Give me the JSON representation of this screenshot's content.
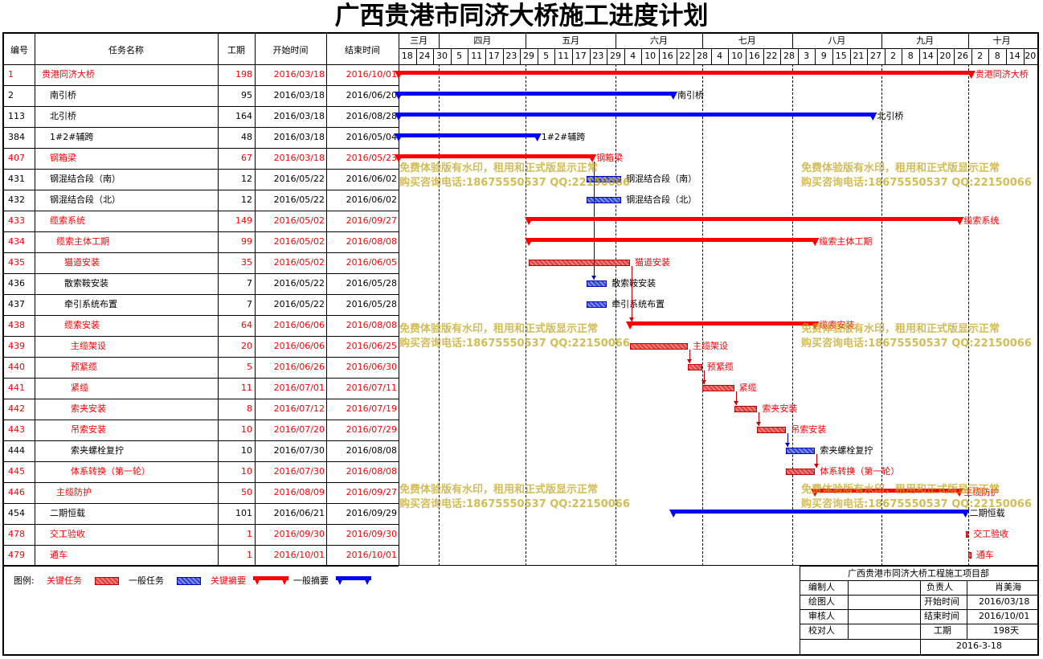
{
  "title": "广西贵港市同济大桥施工进度计划",
  "headers": {
    "id": "编号",
    "name": "任务名称",
    "duration": "工期",
    "start": "开始时间",
    "end": "结束时间"
  },
  "months": [
    "三月",
    "四月",
    "五月",
    "六月",
    "七月",
    "八月",
    "九月",
    "十月"
  ],
  "days": [
    "18",
    "24",
    "30",
    "5",
    "11",
    "17",
    "23",
    "29",
    "5",
    "11",
    "17",
    "23",
    "29",
    "4",
    "10",
    "16",
    "22",
    "28",
    "4",
    "10",
    "16",
    "22",
    "28",
    "3",
    "9",
    "15",
    "21",
    "27",
    "2",
    "8",
    "14",
    "20",
    "26",
    "2",
    "8",
    "14",
    "20"
  ],
  "tasks": [
    {
      "id": "1",
      "name": "贵港同济大桥",
      "duration": "198",
      "start": "2016/03/18",
      "end": "2016/10/01",
      "critical": true,
      "level": 0,
      "type": "summary",
      "s": 0,
      "e": 198,
      "label": "贵港同济大桥"
    },
    {
      "id": "2",
      "name": "南引桥",
      "duration": "95",
      "start": "2016/03/18",
      "end": "2016/06/20",
      "critical": false,
      "level": 1,
      "type": "summary",
      "s": 0,
      "e": 95,
      "label": "南引桥"
    },
    {
      "id": "113",
      "name": "北引桥",
      "duration": "164",
      "start": "2016/03/18",
      "end": "2016/08/28",
      "critical": false,
      "level": 1,
      "type": "summary",
      "s": 0,
      "e": 164,
      "label": "北引桥"
    },
    {
      "id": "384",
      "name": "1#2#辅跨",
      "duration": "48",
      "start": "2016/03/18",
      "end": "2016/05/04",
      "critical": false,
      "level": 1,
      "type": "summary",
      "s": 0,
      "e": 48,
      "label": "1#2#辅跨"
    },
    {
      "id": "407",
      "name": "钢箱梁",
      "duration": "67",
      "start": "2016/03/18",
      "end": "2016/05/23",
      "critical": true,
      "level": 1,
      "type": "summary",
      "s": 0,
      "e": 67,
      "label": "钢箱梁"
    },
    {
      "id": "431",
      "name": "钢混结合段（南）",
      "duration": "12",
      "start": "2016/05/22",
      "end": "2016/06/02",
      "critical": false,
      "level": 1,
      "type": "task",
      "s": 65,
      "e": 77,
      "label": "钢混结合段（南）"
    },
    {
      "id": "432",
      "name": "钢混结合段（北）",
      "duration": "12",
      "start": "2016/05/22",
      "end": "2016/06/02",
      "critical": false,
      "level": 1,
      "type": "task",
      "s": 65,
      "e": 77,
      "label": "钢混结合段（北）"
    },
    {
      "id": "433",
      "name": "缆索系统",
      "duration": "149",
      "start": "2016/05/02",
      "end": "2016/09/27",
      "critical": true,
      "level": 1,
      "type": "summary",
      "s": 45,
      "e": 194,
      "label": "缆索系统"
    },
    {
      "id": "434",
      "name": "缆索主体工期",
      "duration": "99",
      "start": "2016/05/02",
      "end": "2016/08/08",
      "critical": true,
      "level": 2,
      "type": "summary",
      "s": 45,
      "e": 144,
      "label": "缆索主体工期"
    },
    {
      "id": "435",
      "name": "猫道安装",
      "duration": "35",
      "start": "2016/05/02",
      "end": "2016/06/05",
      "critical": true,
      "level": 3,
      "type": "task",
      "s": 45,
      "e": 80,
      "label": "猫道安装"
    },
    {
      "id": "436",
      "name": "散索鞍安装",
      "duration": "7",
      "start": "2016/05/22",
      "end": "2016/05/28",
      "critical": false,
      "level": 3,
      "type": "task",
      "s": 65,
      "e": 72,
      "label": "散索鞍安装"
    },
    {
      "id": "437",
      "name": "牵引系统布置",
      "duration": "7",
      "start": "2016/05/22",
      "end": "2016/05/28",
      "critical": false,
      "level": 3,
      "type": "task",
      "s": 65,
      "e": 72,
      "label": "牵引系统布置"
    },
    {
      "id": "438",
      "name": "缆索安装",
      "duration": "64",
      "start": "2016/06/06",
      "end": "2016/08/08",
      "critical": true,
      "level": 3,
      "type": "summary",
      "s": 80,
      "e": 144,
      "label": "缆索安装"
    },
    {
      "id": "439",
      "name": "主缆架设",
      "duration": "20",
      "start": "2016/06/06",
      "end": "2016/06/25",
      "critical": true,
      "level": 4,
      "type": "task",
      "s": 80,
      "e": 100,
      "label": "主缆架设"
    },
    {
      "id": "440",
      "name": "预紧缆",
      "duration": "5",
      "start": "2016/06/26",
      "end": "2016/06/30",
      "critical": true,
      "level": 4,
      "type": "task",
      "s": 100,
      "e": 105,
      "label": "预紧缆"
    },
    {
      "id": "441",
      "name": "紧缆",
      "duration": "11",
      "start": "2016/07/01",
      "end": "2016/07/11",
      "critical": true,
      "level": 4,
      "type": "task",
      "s": 105,
      "e": 116,
      "label": "紧缆"
    },
    {
      "id": "442",
      "name": "索夹安装",
      "duration": "8",
      "start": "2016/07/12",
      "end": "2016/07/19",
      "critical": true,
      "level": 4,
      "type": "task",
      "s": 116,
      "e": 124,
      "label": "索夹安装"
    },
    {
      "id": "443",
      "name": "吊索安装",
      "duration": "10",
      "start": "2016/07/20",
      "end": "2016/07/29",
      "critical": true,
      "level": 4,
      "type": "task",
      "s": 124,
      "e": 134,
      "label": "吊索安装"
    },
    {
      "id": "444",
      "name": "索夹螺栓复拧",
      "duration": "10",
      "start": "2016/07/30",
      "end": "2016/08/08",
      "critical": false,
      "level": 4,
      "type": "task",
      "s": 134,
      "e": 144,
      "label": "索夹螺栓复拧"
    },
    {
      "id": "445",
      "name": "体系转换（第一轮）",
      "duration": "10",
      "start": "2016/07/30",
      "end": "2016/08/08",
      "critical": true,
      "level": 4,
      "type": "task",
      "s": 134,
      "e": 144,
      "label": "体系转换（第一轮）"
    },
    {
      "id": "446",
      "name": "主缆防护",
      "duration": "50",
      "start": "2016/08/09",
      "end": "2016/09/27",
      "critical": true,
      "level": 2,
      "type": "summary",
      "s": 144,
      "e": 194,
      "label": "主缆防护"
    },
    {
      "id": "454",
      "name": "二期恒载",
      "duration": "101",
      "start": "2016/06/21",
      "end": "2016/09/29",
      "critical": false,
      "level": 1,
      "type": "summary",
      "s": 95,
      "e": 196,
      "label": "二期恒载"
    },
    {
      "id": "478",
      "name": "交工验收",
      "duration": "1",
      "start": "2016/09/30",
      "end": "2016/09/30",
      "critical": true,
      "level": 1,
      "type": "task",
      "s": 196,
      "e": 197,
      "label": "交工验收"
    },
    {
      "id": "479",
      "name": "通车",
      "duration": "1",
      "start": "2016/10/01",
      "end": "2016/10/01",
      "critical": true,
      "level": 1,
      "type": "task",
      "s": 197,
      "e": 198,
      "label": "通车"
    }
  ],
  "watermark": {
    "line1": "免费体验版有水印，租用和正式版显示正常",
    "line2": "购买咨询电话:18675550537 QQ:22150066"
  },
  "legend": {
    "label": "图例:",
    "critical_task": "关键任务",
    "normal_task": "一般任务",
    "critical_summary": "关键摘要",
    "normal_summary": "一般摘要"
  },
  "info": {
    "org": "广西贵港市同济大桥工程施工项目部",
    "editor_label": "编制人",
    "owner_label": "负责人",
    "owner": "肖美海",
    "drawer_label": "绘图人",
    "start_label": "开始时间",
    "start": "2016/03/18",
    "reviewer_label": "审核人",
    "end_label": "结束时间",
    "end": "2016/10/01",
    "checker_label": "校对人",
    "duration_label": "工期",
    "duration": "198天",
    "date": "2016-3-18"
  },
  "colors": {
    "critical": "#ff0000",
    "normal": "#0000ff",
    "watermark": "#c4a61e"
  }
}
